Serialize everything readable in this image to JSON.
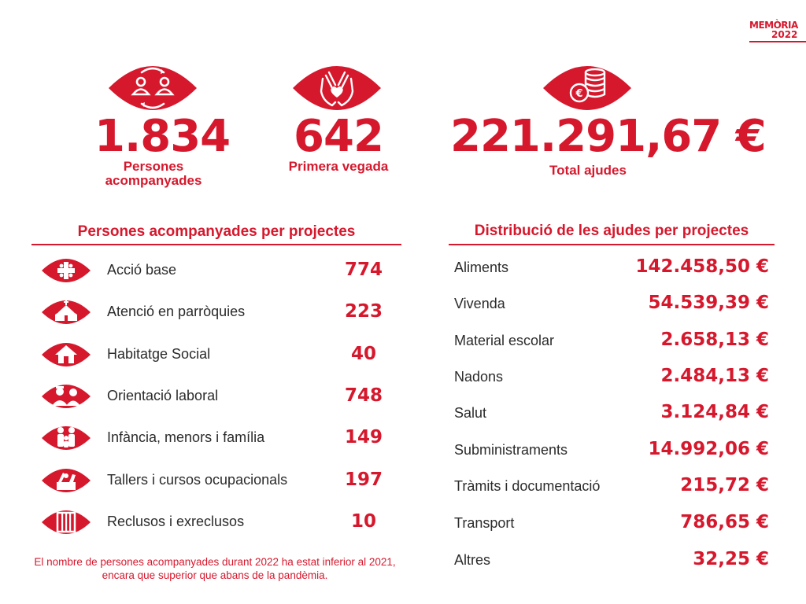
{
  "logo": {
    "line1": "MEMÒRIA",
    "line2": "2022"
  },
  "stats": [
    {
      "value": "1.834",
      "label_line1": "Persones",
      "label_line2": "acompanyades",
      "icon": "people-exchange-icon"
    },
    {
      "value": "642",
      "label_line1": "Primera vegada",
      "label_line2": "",
      "icon": "heart-hands-icon"
    },
    {
      "value": "221.291,67 €",
      "label_line1": "Total ajudes",
      "label_line2": "",
      "icon": "euro-coins-icon"
    }
  ],
  "left_section": {
    "title": "Persones acompanyades per projectes",
    "items": [
      {
        "label": "Acció base",
        "value": "774",
        "icon": "caritas-cross-icon"
      },
      {
        "label": "Atenció en parròquies",
        "value": "223",
        "icon": "church-icon"
      },
      {
        "label": "Habitatge Social",
        "value": "40",
        "icon": "house-icon"
      },
      {
        "label": "Orientació laboral",
        "value": "748",
        "icon": "workers-icon"
      },
      {
        "label": "Infància, menors i família",
        "value": "149",
        "icon": "family-icon"
      },
      {
        "label": "Tallers i cursos ocupacionals",
        "value": "197",
        "icon": "workshop-icon"
      },
      {
        "label": "Reclusos i exreclusos",
        "value": "10",
        "icon": "prison-bars-icon"
      }
    ],
    "note": "El nombre de persones acompanyades durant 2022 ha estat inferior al 2021, encara que superior que abans de la pandèmia."
  },
  "right_section": {
    "title": "Distribució de les ajudes per projectes",
    "items": [
      {
        "label": "Aliments",
        "value": "142.458,50 €"
      },
      {
        "label": "Vivenda",
        "value": "54.539,39 €"
      },
      {
        "label": "Material escolar",
        "value": "2.658,13 €"
      },
      {
        "label": "Nadons",
        "value": "2.484,13 €"
      },
      {
        "label": "Salut",
        "value": "3.124,84 €"
      },
      {
        "label": "Subministraments",
        "value": "14.992,06 €"
      },
      {
        "label": "Tràmits i documentació",
        "value": "215,72 €"
      },
      {
        "label": "Transport",
        "value": "786,65 €"
      },
      {
        "label": "Altres",
        "value": "32,25 €"
      }
    ]
  },
  "colors": {
    "accent": "#d6182d",
    "text": "#2b2b2b"
  }
}
